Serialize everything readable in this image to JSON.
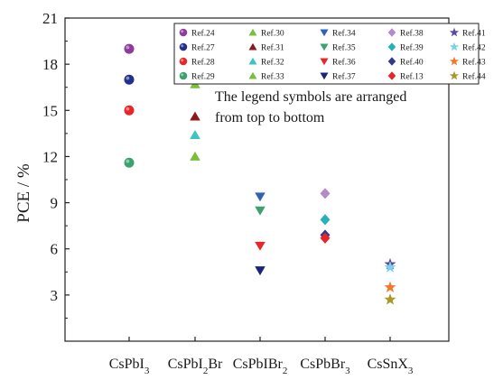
{
  "chart_data": {
    "type": "scatter",
    "title": "",
    "ylabel": "PCE / %",
    "xlabel": "",
    "ylim": [
      0,
      21
    ],
    "yticks": [
      3,
      6,
      9,
      12,
      15,
      18,
      21
    ],
    "grid": false,
    "legend_position": "top-right",
    "categories": [
      {
        "base": "CsPbI",
        "sub": "3",
        "tail": ""
      },
      {
        "base": "CsPbI",
        "sub": "2",
        "tail": "Br"
      },
      {
        "base": "CsPbIBr",
        "sub": "2",
        "tail": ""
      },
      {
        "base": "CsPbBr",
        "sub": "3",
        "tail": ""
      },
      {
        "base": "CsSnX",
        "sub": "3",
        "tail": ""
      }
    ],
    "annotation": [
      "The legend symbols are arranged",
      "from top to bottom"
    ],
    "series": [
      {
        "name": "Ref.24",
        "marker": "circle",
        "color": "#8e3a9e",
        "category": 0,
        "value": 19.0
      },
      {
        "name": "Ref.27",
        "marker": "circle",
        "color": "#23308a",
        "category": 0,
        "value": 17.0
      },
      {
        "name": "Ref.28",
        "marker": "circle",
        "color": "#e8262a",
        "category": 0,
        "value": 15.0
      },
      {
        "name": "Ref.29",
        "marker": "circle",
        "color": "#3aa26a",
        "category": 0,
        "value": 11.6
      },
      {
        "name": "Ref.30",
        "marker": "triangle-up",
        "color": "#7cbd3a",
        "category": 1,
        "value": 16.7
      },
      {
        "name": "Ref.31",
        "marker": "triangle-up",
        "color": "#8b1a1a",
        "category": 1,
        "value": 14.6
      },
      {
        "name": "Ref.32",
        "marker": "triangle-up",
        "color": "#3cc4c4",
        "category": 1,
        "value": 13.4
      },
      {
        "name": "Ref.33",
        "marker": "triangle-up",
        "color": "#7cbd3a",
        "category": 1,
        "value": 12.0
      },
      {
        "name": "Ref.34",
        "marker": "triangle-down",
        "color": "#2e63b8",
        "category": 2,
        "value": 9.4
      },
      {
        "name": "Ref.35",
        "marker": "triangle-down",
        "color": "#3aa26a",
        "category": 2,
        "value": 8.5
      },
      {
        "name": "Ref.36",
        "marker": "triangle-down",
        "color": "#e8262a",
        "category": 2,
        "value": 6.2
      },
      {
        "name": "Ref.37",
        "marker": "triangle-down",
        "color": "#1a237e",
        "category": 2,
        "value": 4.6
      },
      {
        "name": "Ref.38",
        "marker": "diamond",
        "color": "#b48ac8",
        "category": 3,
        "value": 9.6
      },
      {
        "name": "Ref.39",
        "marker": "diamond",
        "color": "#26b0b8",
        "category": 3,
        "value": 7.9
      },
      {
        "name": "Ref.40",
        "marker": "diamond",
        "color": "#2f3c8f",
        "category": 3,
        "value": 6.9
      },
      {
        "name": "Ref.13",
        "marker": "diamond",
        "color": "#e8262a",
        "category": 3,
        "value": 6.7
      },
      {
        "name": "Ref.41",
        "marker": "star",
        "color": "#5b4a9e",
        "category": 4,
        "value": 5.0
      },
      {
        "name": "Ref.42",
        "marker": "star",
        "color": "#7dd0e8",
        "category": 4,
        "value": 4.8
      },
      {
        "name": "Ref.43",
        "marker": "star",
        "color": "#f07a2a",
        "category": 4,
        "value": 3.5
      },
      {
        "name": "Ref.44",
        "marker": "star",
        "color": "#a89a2a",
        "category": 4,
        "value": 2.7
      }
    ]
  }
}
